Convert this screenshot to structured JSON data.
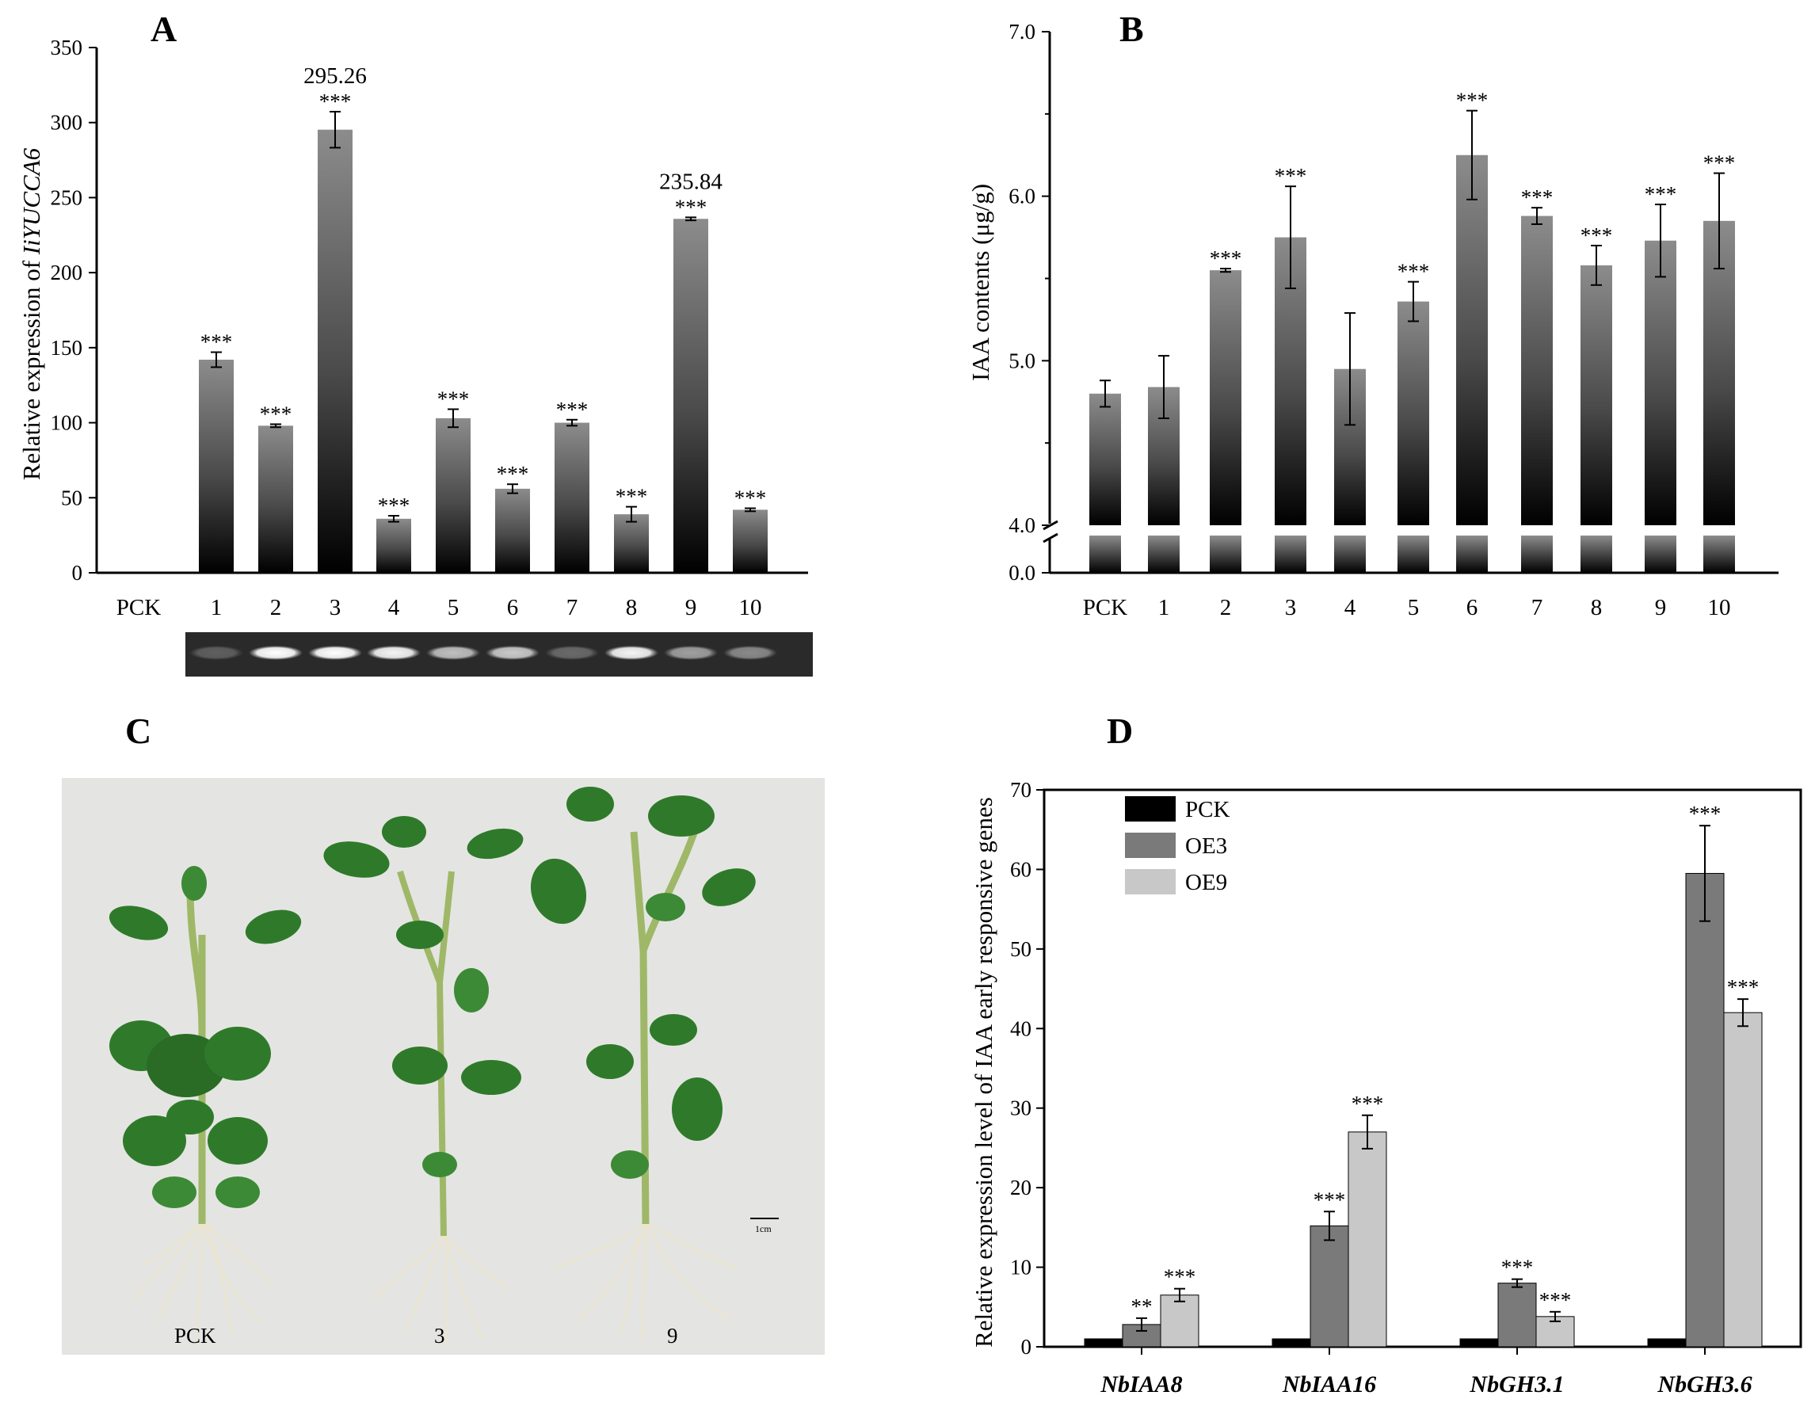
{
  "panels": {
    "a": {
      "letter": "A"
    },
    "b": {
      "letter": "B"
    },
    "c": {
      "letter": "C"
    },
    "d": {
      "letter": "D"
    }
  },
  "chart_data": [
    {
      "panel": "A",
      "type": "bar",
      "ylabel_prefix": "Relative expression of ",
      "ylabel_gene": "IiYUCCA6",
      "categories": [
        "PCK",
        "1",
        "2",
        "3",
        "4",
        "5",
        "6",
        "7",
        "8",
        "9",
        "10"
      ],
      "values": [
        0,
        142,
        98,
        295.26,
        36,
        103,
        56,
        100,
        39,
        235.84,
        42
      ],
      "errors": [
        0,
        5,
        1,
        12,
        2,
        6,
        3,
        2,
        5,
        1,
        1
      ],
      "significance": [
        "",
        "***",
        "***",
        "***",
        "***",
        "***",
        "***",
        "***",
        "***",
        "***",
        "***"
      ],
      "value_labels": [
        "",
        "",
        "",
        "295.26",
        "",
        "",
        "",
        "",
        "",
        "235.84",
        ""
      ],
      "ylim": [
        0,
        350
      ],
      "yticks": [
        0,
        50,
        100,
        150,
        200,
        250,
        300,
        350
      ],
      "gel_intensity": [
        0.25,
        1.0,
        1.0,
        0.95,
        0.7,
        0.75,
        0.3,
        0.95,
        0.55,
        0.45
      ]
    },
    {
      "panel": "B",
      "type": "bar",
      "ylabel": "IAA contents (μg/g)",
      "categories": [
        "PCK",
        "1",
        "2",
        "3",
        "4",
        "5",
        "6",
        "7",
        "8",
        "9",
        "10"
      ],
      "values": [
        4.8,
        4.84,
        5.55,
        5.75,
        4.95,
        5.36,
        6.25,
        5.88,
        5.58,
        5.73,
        5.85
      ],
      "errors": [
        0.08,
        0.19,
        0.01,
        0.31,
        0.34,
        0.12,
        0.27,
        0.05,
        0.12,
        0.22,
        0.29
      ],
      "significance": [
        "",
        "",
        "***",
        "***",
        "",
        "***",
        "***",
        "***",
        "***",
        "***",
        "***"
      ],
      "broken_axis": true,
      "ylim_lower": [
        0,
        0.5
      ],
      "ylim_upper": [
        4.0,
        7.0
      ],
      "yticks_upper": [
        "4.0",
        "5.0",
        "6.0",
        "7.0"
      ],
      "yticks_lower": [
        "0.0"
      ]
    },
    {
      "panel": "D",
      "type": "bar",
      "ylabel": "Relative expression level of IAA early responsive genes",
      "categories": [
        "NbIAA8",
        "NbIAA16",
        "NbGH3.1",
        "NbGH3.6"
      ],
      "series": [
        {
          "name": "PCK",
          "color": "#000000",
          "values": [
            1,
            1,
            1,
            1
          ],
          "errors": [
            0,
            0,
            0,
            0
          ],
          "significance": [
            "",
            "",
            "",
            ""
          ]
        },
        {
          "name": "OE3",
          "color": "#7a7a7a",
          "values": [
            2.8,
            15.2,
            8.0,
            59.5
          ],
          "errors": [
            0.8,
            1.8,
            0.5,
            6.0
          ],
          "significance": [
            "**",
            "***",
            "***",
            "***"
          ]
        },
        {
          "name": "OE9",
          "color": "#c8c8c8",
          "values": [
            6.5,
            27.0,
            3.8,
            42.0
          ],
          "errors": [
            0.8,
            2.1,
            0.6,
            1.7
          ],
          "significance": [
            "***",
            "***",
            "***",
            "***"
          ]
        }
      ],
      "ylim": [
        0,
        70
      ],
      "yticks": [
        0,
        10,
        20,
        30,
        40,
        50,
        60,
        70
      ],
      "legend": "top-left"
    }
  ],
  "photo": {
    "labels": [
      "PCK",
      "3",
      "9"
    ],
    "scale_label": "1cm"
  }
}
